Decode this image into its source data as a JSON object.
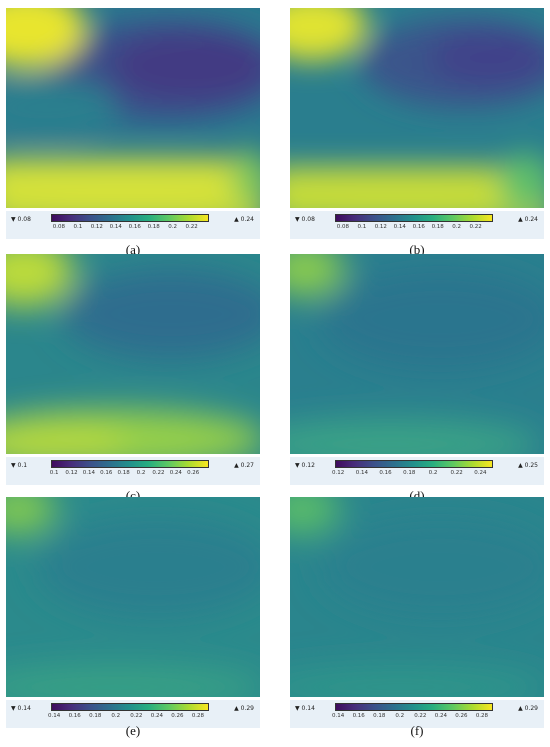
{
  "panels": [
    {
      "caption": "(a)",
      "cbar_min": "▼ 0.08",
      "cbar_max": "▲ 0.24",
      "ticks": [
        "0.08",
        "0.1",
        "0.12",
        "0.14",
        "0.16",
        "0.18",
        "0.2",
        "0.22"
      ],
      "tick_fracs": [
        0.05,
        0.17,
        0.29,
        0.41,
        0.53,
        0.65,
        0.77,
        0.89
      ],
      "style": 0
    },
    {
      "caption": "(b)",
      "cbar_min": "▼ 0.08",
      "cbar_max": "▲ 0.24",
      "ticks": [
        "0.08",
        "0.1",
        "0.12",
        "0.14",
        "0.16",
        "0.18",
        "0.2",
        "0.22"
      ],
      "tick_fracs": [
        0.05,
        0.17,
        0.29,
        0.41,
        0.53,
        0.65,
        0.77,
        0.89
      ],
      "style": 1
    },
    {
      "caption": "(c)",
      "cbar_min": "▼ 0.1",
      "cbar_max": "▲ 0.27",
      "ticks": [
        "0.1",
        "0.12",
        "0.14",
        "0.16",
        "0.18",
        "0.2",
        "0.22",
        "0.24",
        "0.26"
      ],
      "tick_fracs": [
        0.02,
        0.13,
        0.24,
        0.35,
        0.46,
        0.57,
        0.68,
        0.79,
        0.9
      ],
      "style": 2
    },
    {
      "caption": "(d)",
      "cbar_min": "▼ 0.12",
      "cbar_max": "▲ 0.25",
      "ticks": [
        "0.12",
        "0.14",
        "0.16",
        "0.18",
        "0.2",
        "0.22",
        "0.24"
      ],
      "tick_fracs": [
        0.02,
        0.17,
        0.32,
        0.47,
        0.62,
        0.77,
        0.92
      ],
      "style": 3
    },
    {
      "caption": "(e)",
      "cbar_min": "▼ 0.14",
      "cbar_max": "▲ 0.29",
      "ticks": [
        "0.14",
        "0.16",
        "0.18",
        "0.2",
        "0.22",
        "0.24",
        "0.26",
        "0.28"
      ],
      "tick_fracs": [
        0.02,
        0.15,
        0.28,
        0.41,
        0.54,
        0.67,
        0.8,
        0.93
      ],
      "style": 4
    },
    {
      "caption": "(f)",
      "cbar_min": "▼ 0.14",
      "cbar_max": "▲ 0.29",
      "ticks": [
        "0.14",
        "0.16",
        "0.18",
        "0.2",
        "0.22",
        "0.24",
        "0.26",
        "0.28"
      ],
      "tick_fracs": [
        0.02,
        0.15,
        0.28,
        0.41,
        0.54,
        0.67,
        0.8,
        0.93
      ],
      "style": 5
    }
  ],
  "colormap": "viridis"
}
